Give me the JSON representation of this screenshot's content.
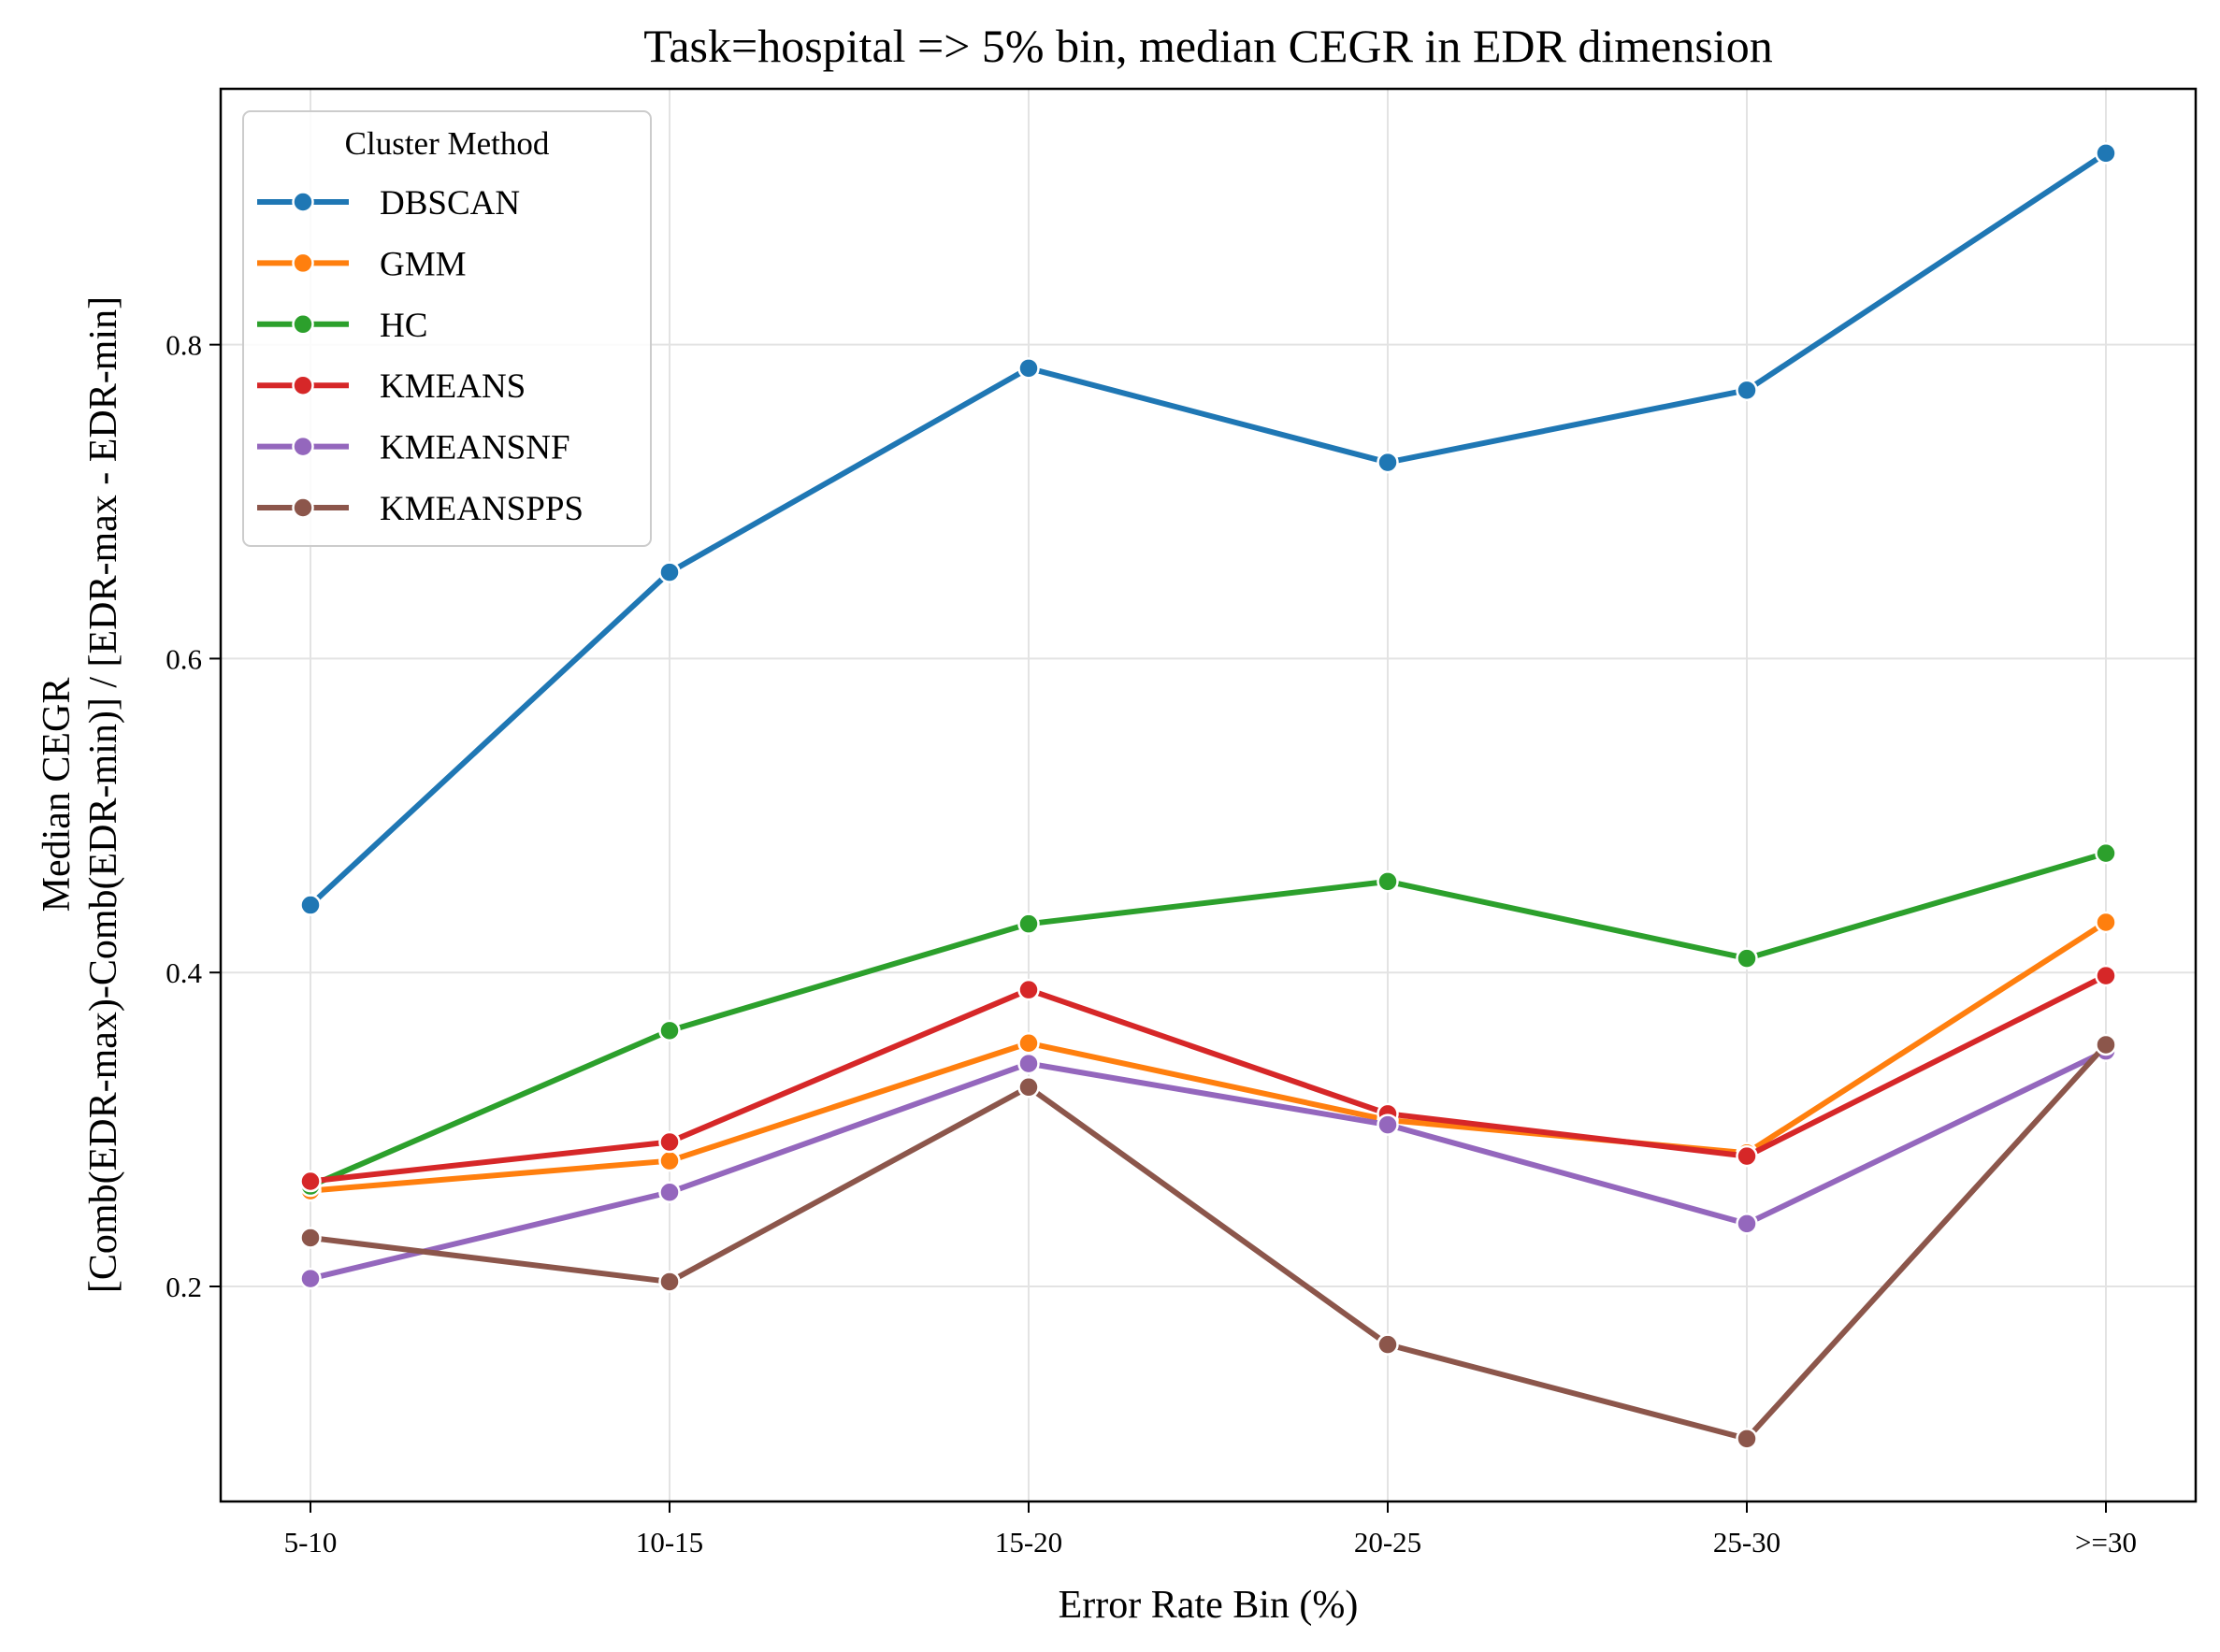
{
  "chart_data": {
    "type": "line",
    "title": "Task=hospital => 5% bin, median CEGR in EDR dimension",
    "xlabel": "Error Rate Bin (%)",
    "ylabel_line1": "Median CEGR",
    "ylabel_line2": "[Comb(EDR-max)-Comb(EDR-min)] / [EDR-max - EDR-min]",
    "categories": [
      "5-10",
      "10-15",
      "15-20",
      "20-25",
      "25-30",
      ">=30"
    ],
    "yticks": [
      0.2,
      0.4,
      0.6,
      0.8
    ],
    "ytick_labels": [
      "0.2",
      "0.4",
      "0.6",
      "0.8"
    ],
    "ylim": [
      0.063,
      0.963
    ],
    "grid": true,
    "legend": {
      "title": "Cluster Method",
      "position": "top-left"
    },
    "series": [
      {
        "name": "DBSCAN",
        "color": "#1f77b4",
        "values": [
          0.443,
          0.655,
          0.785,
          0.725,
          0.771,
          0.922
        ]
      },
      {
        "name": "GMM",
        "color": "#ff7f0e",
        "values": [
          0.261,
          0.28,
          0.355,
          0.306,
          0.285,
          0.432
        ]
      },
      {
        "name": "HC",
        "color": "#2ca02c",
        "values": [
          0.264,
          0.363,
          0.431,
          0.458,
          0.409,
          0.476
        ]
      },
      {
        "name": "KMEANS",
        "color": "#d62728",
        "values": [
          0.267,
          0.292,
          0.389,
          0.31,
          0.283,
          0.398
        ]
      },
      {
        "name": "KMEANSNF",
        "color": "#9467bd",
        "values": [
          0.205,
          0.26,
          0.342,
          0.303,
          0.24,
          0.35
        ]
      },
      {
        "name": "KMEANSPPS",
        "color": "#8c564b",
        "values": [
          0.231,
          0.203,
          0.327,
          0.163,
          0.103,
          0.354
        ]
      }
    ]
  }
}
